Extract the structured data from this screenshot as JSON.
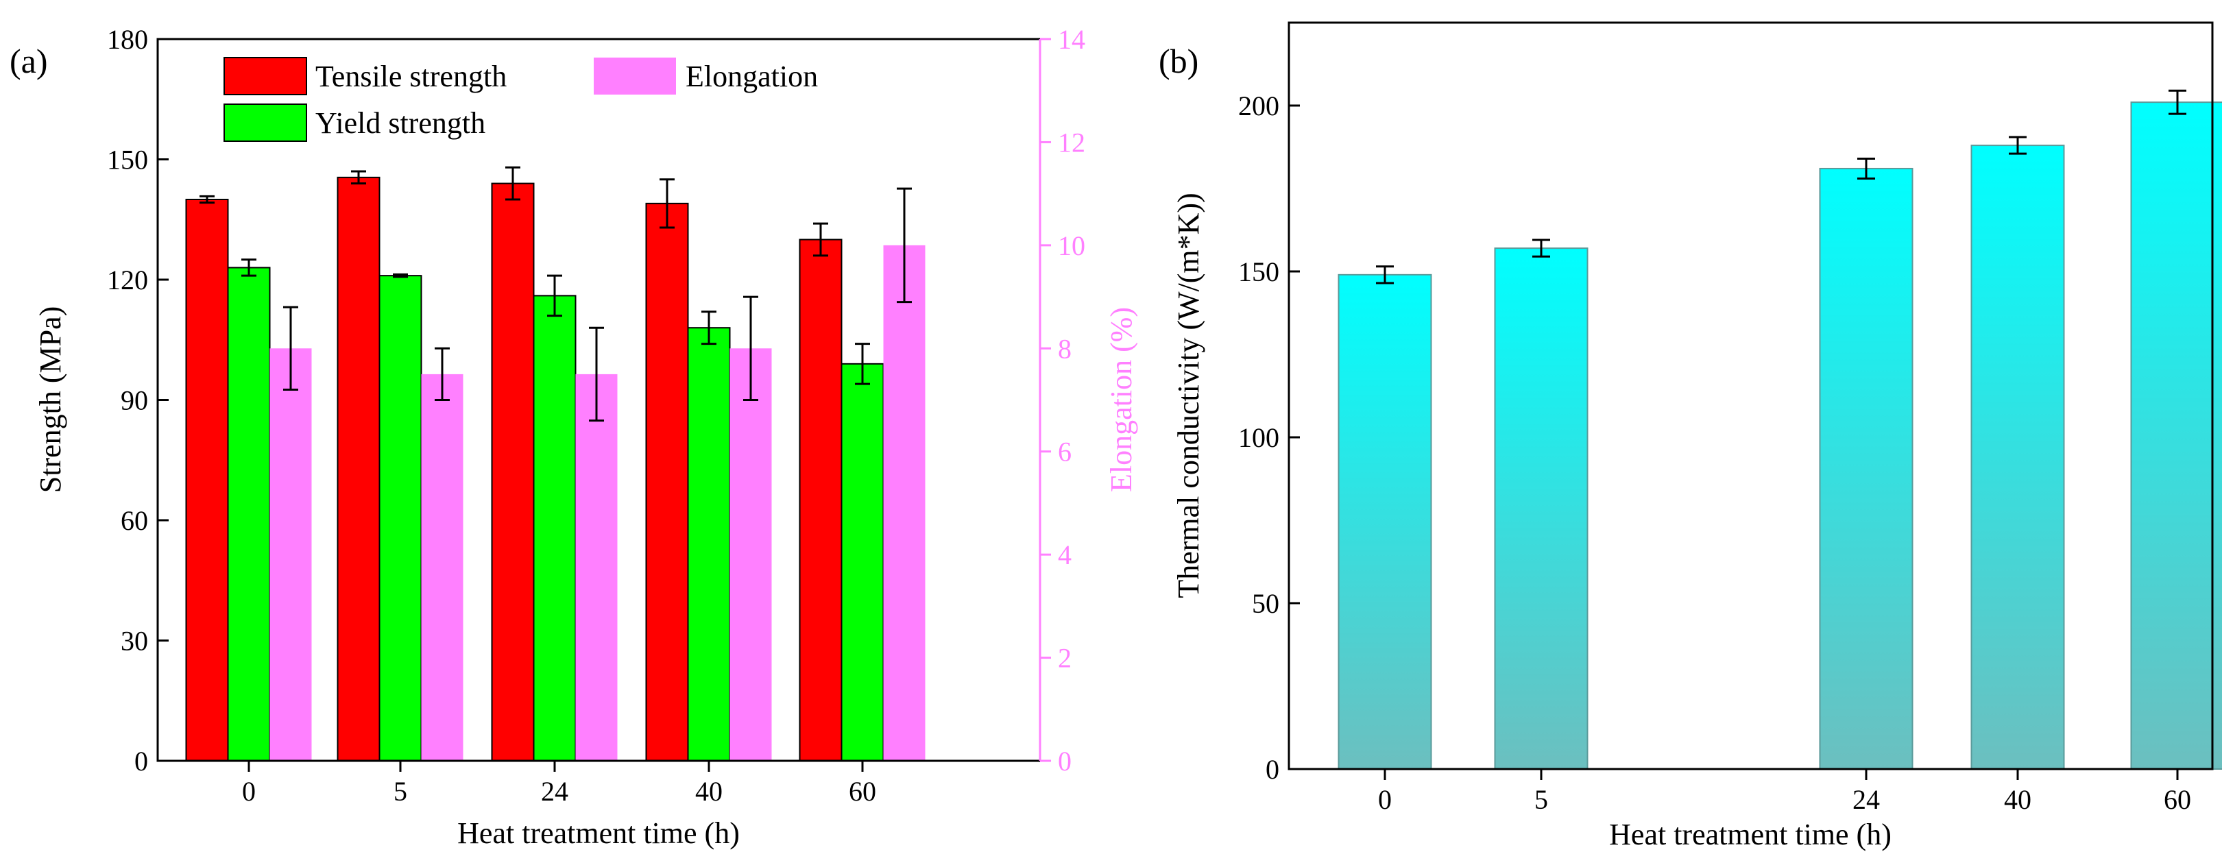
{
  "chart_data": [
    {
      "panel_label": "(a)",
      "type": "bar",
      "xlabel": "Heat treatment time (h)",
      "ylabel": "Strength (MPa)",
      "ylabel_right": "Elongation (%)",
      "categories": [
        "0",
        "5",
        "24",
        "40",
        "60"
      ],
      "ylim": [
        0,
        180
      ],
      "yticks": [
        "0",
        "30",
        "60",
        "90",
        "120",
        "150",
        "180"
      ],
      "ylim_right": [
        0,
        14
      ],
      "yticks_right": [
        "0",
        "2",
        "4",
        "6",
        "8",
        "10",
        "12",
        "14"
      ],
      "legend_position": "top",
      "series": [
        {
          "name": "Tensile strength",
          "axis": "left",
          "color": "#ff0000",
          "values": [
            140,
            145.5,
            144,
            139,
            130
          ],
          "errors": [
            0.8,
            1.5,
            4,
            6,
            4
          ]
        },
        {
          "name": "Yield strength",
          "axis": "left",
          "color": "#00ff00",
          "values": [
            123,
            121,
            116,
            108,
            99
          ],
          "errors": [
            2,
            0.3,
            5,
            4,
            5
          ]
        },
        {
          "name": "Elongation",
          "axis": "right",
          "color": "#ff80ff",
          "values": [
            8,
            7.5,
            7.5,
            8,
            10
          ],
          "errors": [
            0.8,
            0.5,
            0.9,
            1,
            1.1
          ]
        }
      ]
    },
    {
      "panel_label": "(b)",
      "type": "bar",
      "xlabel": "Heat treatment time (h)",
      "ylabel": "Thermal conductivity (W/(m*K))",
      "categories": [
        "0",
        "5",
        "24",
        "40",
        "60"
      ],
      "ylim": [
        0,
        225
      ],
      "yticks": [
        "0",
        "50",
        "100",
        "150",
        "200"
      ],
      "series": [
        {
          "name": "Thermal conductivity",
          "color_top": "#00ffff",
          "color_bottom": "#6cbfbf",
          "values": [
            149,
            157,
            181,
            188,
            201
          ],
          "errors": [
            2.5,
            2.5,
            3,
            2.5,
            3.5
          ]
        }
      ]
    }
  ]
}
